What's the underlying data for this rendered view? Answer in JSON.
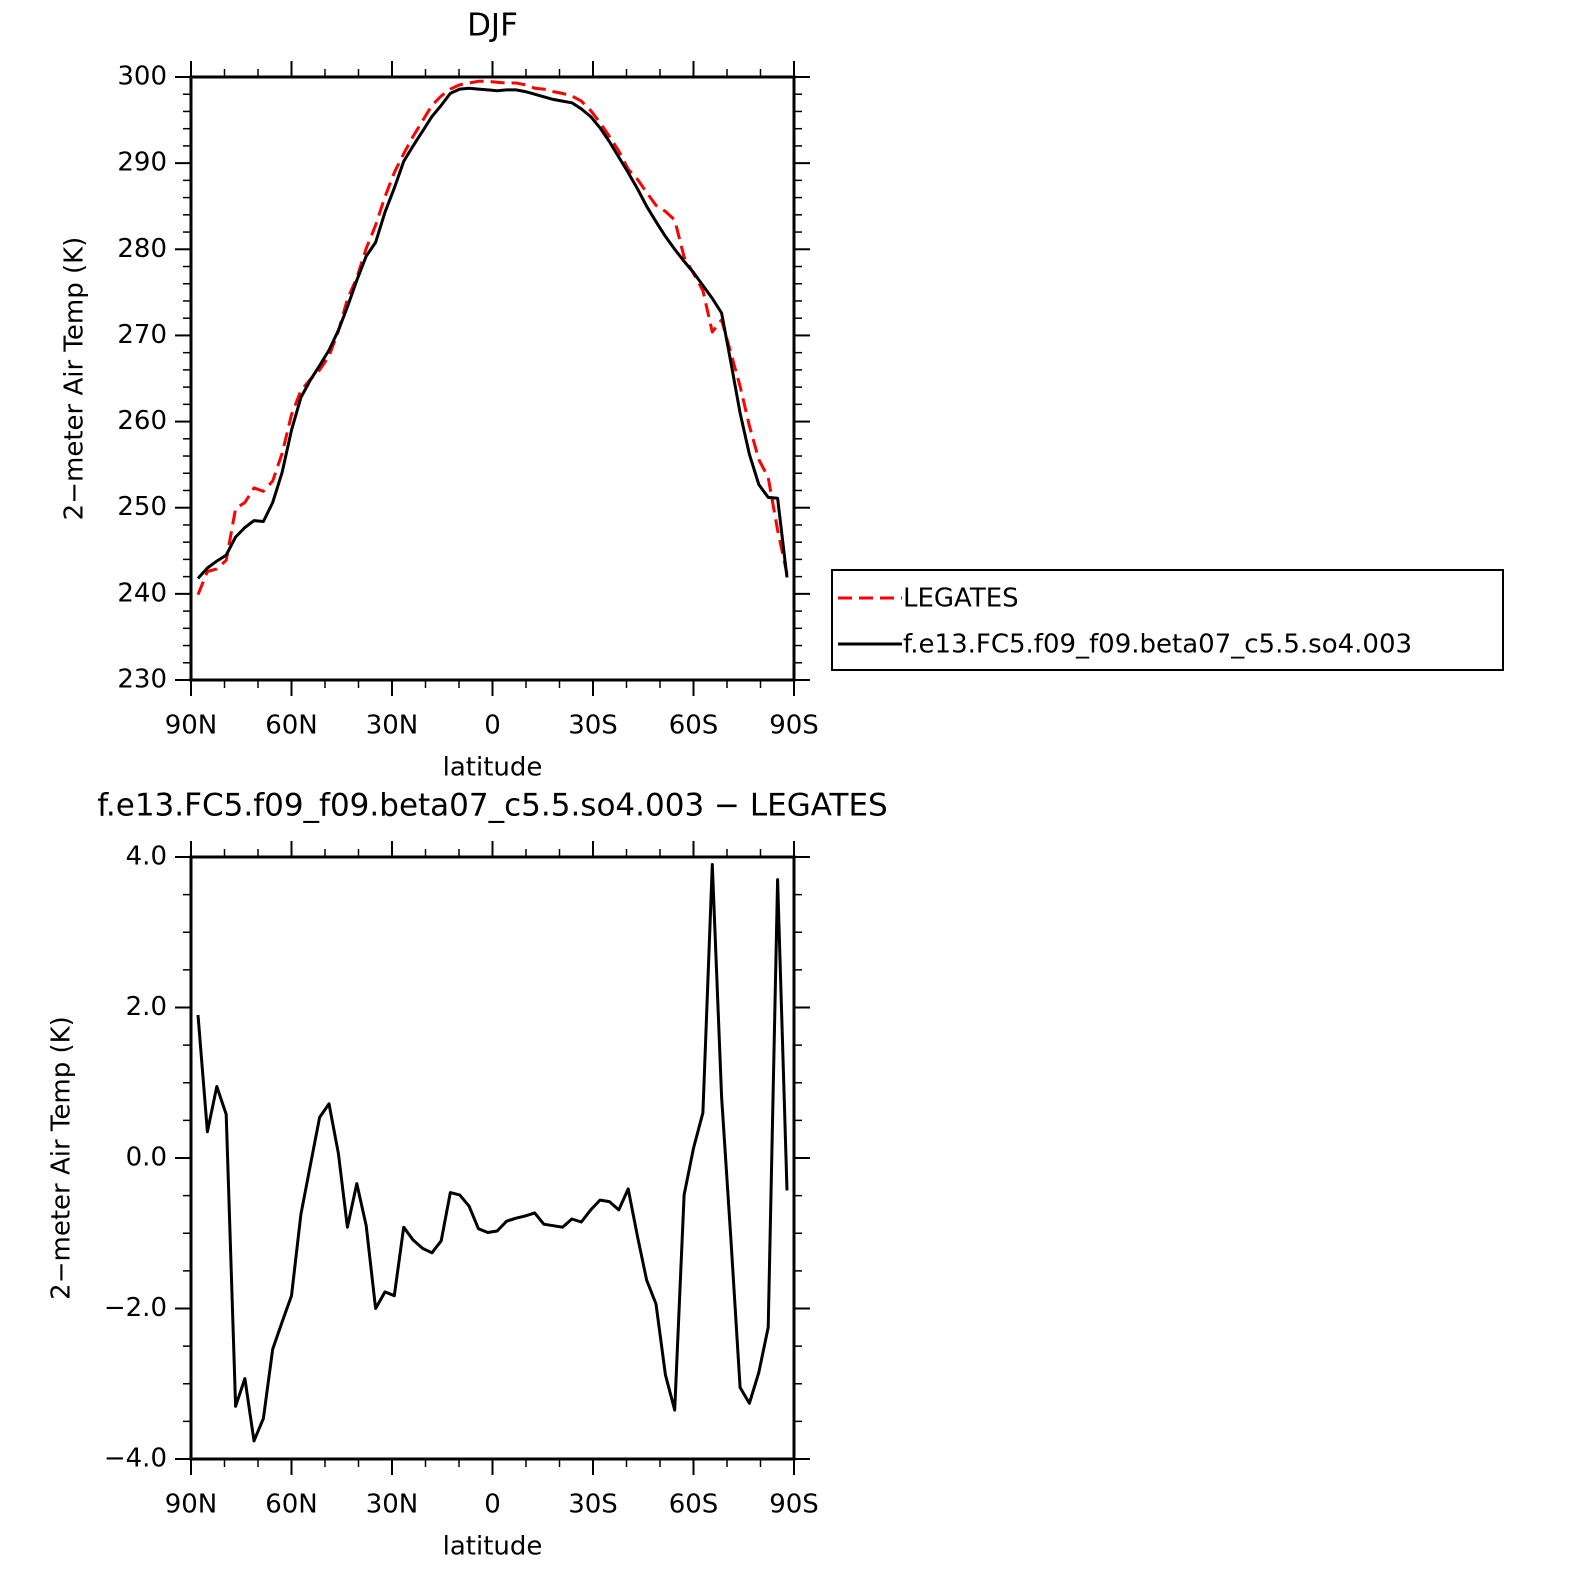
{
  "chart_data": [
    {
      "type": "line",
      "title": "DJF",
      "xlabel": "latitude",
      "ylabel": "2−meter Air Temp (K)",
      "x": [
        87.9,
        85.1,
        82.3,
        79.5,
        76.7,
        73.9,
        71.2,
        68.4,
        65.6,
        62.8,
        60.0,
        57.2,
        54.4,
        51.6,
        48.8,
        46.0,
        43.3,
        40.5,
        37.7,
        34.9,
        32.1,
        29.3,
        26.5,
        23.7,
        20.9,
        18.1,
        15.3,
        12.6,
        9.8,
        7.0,
        4.2,
        1.4,
        -1.4,
        -4.2,
        -7.0,
        -9.8,
        -12.6,
        -15.3,
        -18.1,
        -20.9,
        -23.7,
        -26.5,
        -29.3,
        -32.1,
        -34.9,
        -37.7,
        -40.5,
        -43.3,
        -46.0,
        -48.8,
        -51.6,
        -54.4,
        -57.2,
        -60.0,
        -62.8,
        -65.6,
        -68.4,
        -71.2,
        -73.9,
        -76.7,
        -79.5,
        -82.3,
        -85.1,
        -87.9
      ],
      "series": [
        {
          "name": "LEGATES",
          "color": "#ff0000",
          "line_style": "dashed",
          "values": [
            239.9,
            242.6,
            242.9,
            243.9,
            249.9,
            250.6,
            252.3,
            251.9,
            253.1,
            256.3,
            260.8,
            263.6,
            264.9,
            266.0,
            267.6,
            270.5,
            274.2,
            276.7,
            280.1,
            282.8,
            286.1,
            288.9,
            291.1,
            293.1,
            294.9,
            296.7,
            297.8,
            298.6,
            299.1,
            299.3,
            299.5,
            299.5,
            299.4,
            299.3,
            299.3,
            299.1,
            298.7,
            298.6,
            298.3,
            298.1,
            297.8,
            297.2,
            296.1,
            294.7,
            293.1,
            291.4,
            289.3,
            288.1,
            286.6,
            285.1,
            284.4,
            283.4,
            279.1,
            277.2,
            275.2,
            270.4,
            271.8,
            267.9,
            264.1,
            259.5,
            255.6,
            253.5,
            247.4,
            242.3
          ]
        },
        {
          "name": "f.e13.FC5.f09_f09.beta07_c5.5.so4.003",
          "color": "#000000",
          "line_style": "solid",
          "values": [
            241.8,
            243.0,
            243.8,
            244.5,
            246.6,
            247.7,
            248.5,
            248.4,
            250.6,
            254.1,
            259.0,
            262.8,
            264.8,
            266.5,
            268.3,
            270.6,
            273.3,
            276.4,
            279.2,
            280.8,
            284.3,
            287.1,
            290.2,
            292.0,
            293.7,
            295.4,
            296.7,
            298.1,
            298.6,
            298.7,
            298.6,
            298.5,
            298.4,
            298.5,
            298.5,
            298.3,
            298.0,
            297.7,
            297.4,
            297.2,
            297.0,
            296.3,
            295.4,
            294.1,
            292.5,
            290.7,
            288.9,
            287.0,
            285.0,
            283.2,
            281.5,
            280.0,
            278.6,
            277.3,
            275.8,
            274.3,
            272.6,
            266.8,
            261.0,
            256.2,
            252.7,
            251.2,
            251.1,
            241.9
          ]
        }
      ],
      "xlim": [
        90,
        -90
      ],
      "xticks": [
        {
          "value": 90,
          "label": "90N"
        },
        {
          "value": 60,
          "label": "60N"
        },
        {
          "value": 30,
          "label": "30N"
        },
        0,
        {
          "value": -30,
          "label": "30S"
        },
        {
          "value": -60,
          "label": "60S"
        },
        {
          "value": -90,
          "label": "90S"
        }
      ],
      "ylim": [
        230,
        300
      ],
      "yticks": [
        230,
        240,
        250,
        260,
        270,
        280,
        290,
        300
      ],
      "legend": "right"
    },
    {
      "type": "line",
      "title": "f.e13.FC5.f09_f09.beta07_c5.5.so4.003 − LEGATES",
      "xlabel": "latitude",
      "ylabel": "2−meter Air Temp (K)",
      "x": [
        87.9,
        85.1,
        82.3,
        79.5,
        76.7,
        73.9,
        71.2,
        68.4,
        65.6,
        62.8,
        60.0,
        57.2,
        54.4,
        51.6,
        48.8,
        46.0,
        43.3,
        40.5,
        37.7,
        34.9,
        32.1,
        29.3,
        26.5,
        23.7,
        20.9,
        18.1,
        15.3,
        12.6,
        9.8,
        7.0,
        4.2,
        1.4,
        -1.4,
        -4.2,
        -7.0,
        -9.8,
        -12.6,
        -15.3,
        -18.1,
        -20.9,
        -23.7,
        -26.5,
        -29.3,
        -32.1,
        -34.9,
        -37.7,
        -40.5,
        -43.3,
        -46.0,
        -48.8,
        -51.6,
        -54.4,
        -57.2,
        -60.0,
        -62.8,
        -65.6,
        -68.4,
        -71.2,
        -73.9,
        -76.7,
        -79.5,
        -82.3,
        -85.1,
        -87.9
      ],
      "values": [
        1.9,
        0.35,
        0.95,
        0.58,
        -3.3,
        -2.93,
        -3.76,
        -3.46,
        -2.54,
        -2.18,
        -1.83,
        -0.75,
        -0.1,
        0.54,
        0.72,
        0.06,
        -0.92,
        -0.34,
        -0.9,
        -2.0,
        -1.78,
        -1.83,
        -0.92,
        -1.09,
        -1.2,
        -1.26,
        -1.1,
        -0.46,
        -0.49,
        -0.64,
        -0.94,
        -0.99,
        -0.97,
        -0.84,
        -0.8,
        -0.77,
        -0.73,
        -0.88,
        -0.9,
        -0.92,
        -0.81,
        -0.85,
        -0.69,
        -0.56,
        -0.58,
        -0.69,
        -0.41,
        -1.05,
        -1.62,
        -1.94,
        -2.88,
        -3.35,
        -0.49,
        0.13,
        0.6,
        3.9,
        0.81,
        -1.1,
        -3.05,
        -3.26,
        -2.85,
        -2.25,
        3.7,
        -0.43
      ],
      "color": "#000000",
      "xlim": [
        90,
        -90
      ],
      "xticks": [
        {
          "value": 90,
          "label": "90N"
        },
        {
          "value": 60,
          "label": "60N"
        },
        {
          "value": 30,
          "label": "30N"
        },
        0,
        {
          "value": -30,
          "label": "30S"
        },
        {
          "value": -60,
          "label": "60S"
        },
        {
          "value": -90,
          "label": "90S"
        }
      ],
      "ylim": [
        -4,
        4
      ],
      "yticks": [
        {
          "value": -4,
          "label": "−4.0"
        },
        {
          "value": -2,
          "label": "−2.0"
        },
        {
          "value": 0,
          "label": "0.0"
        },
        {
          "value": 2,
          "label": "2.0"
        },
        {
          "value": 4,
          "label": "4.0"
        }
      ]
    }
  ]
}
